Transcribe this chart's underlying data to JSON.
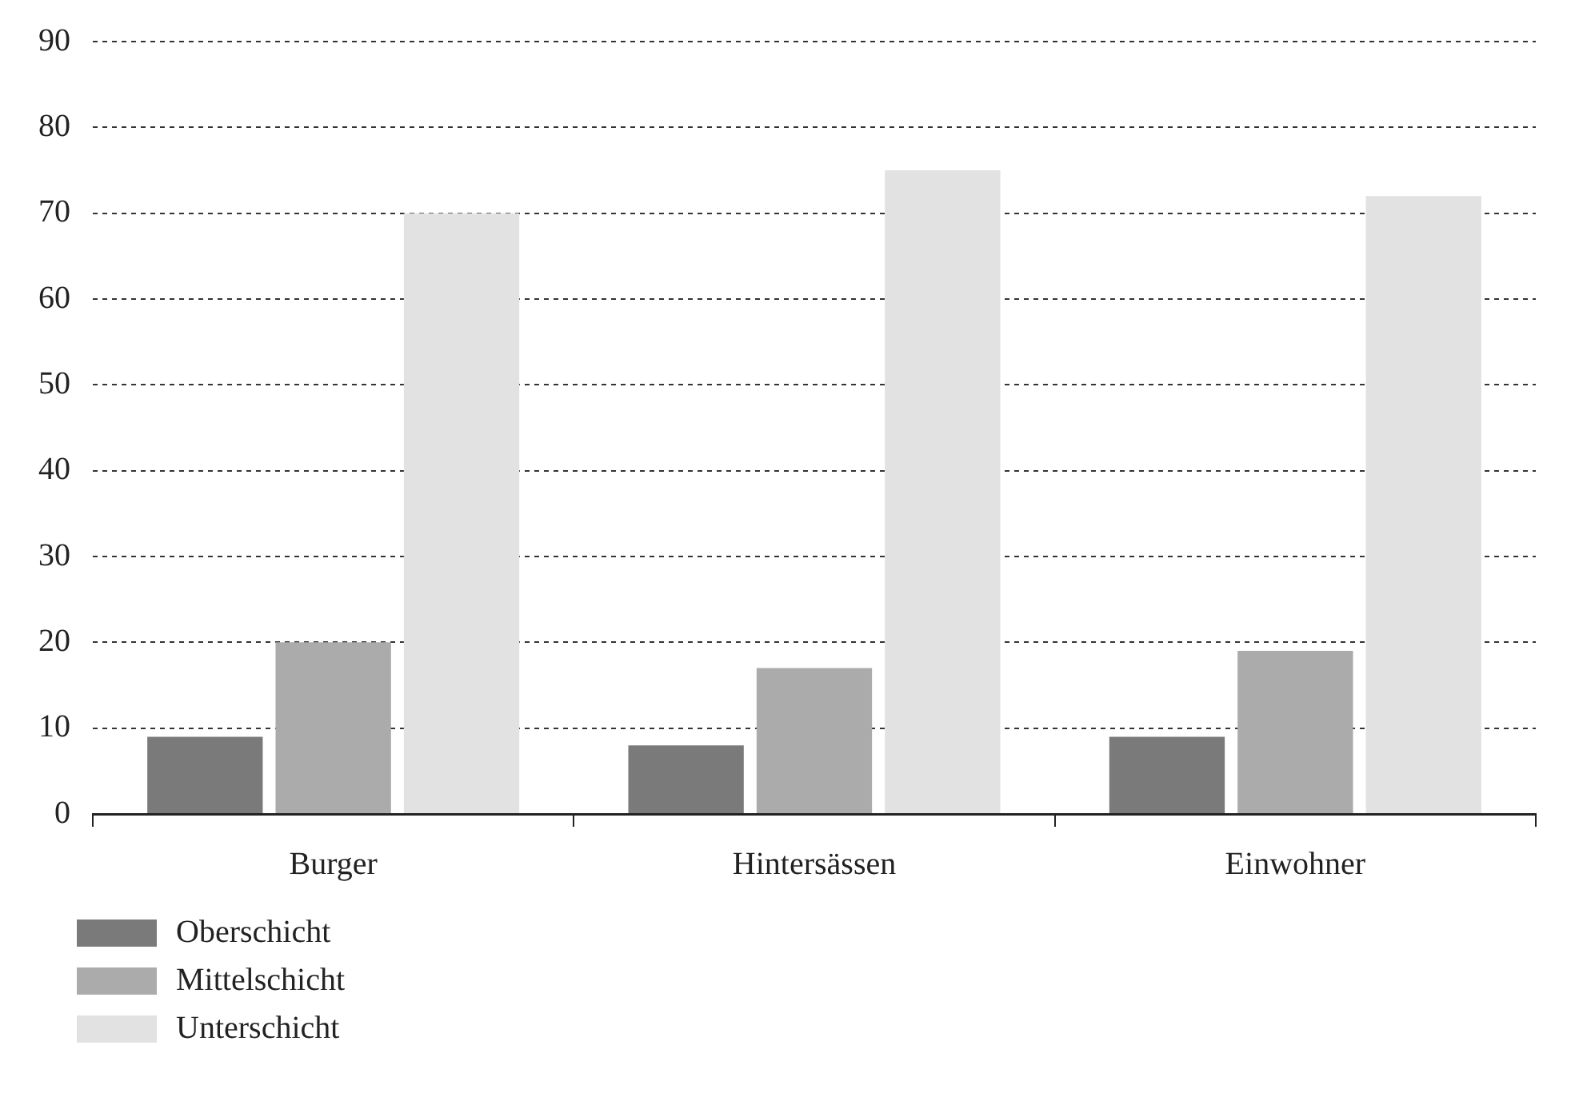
{
  "chart_data": {
    "type": "bar",
    "categories": [
      "Burger",
      "Hintersässen",
      "Einwohner"
    ],
    "series": [
      {
        "name": "Oberschicht",
        "color": "#7a7a7a",
        "values": [
          9,
          8,
          9
        ]
      },
      {
        "name": "Mittelschicht",
        "color": "#ababab",
        "values": [
          20,
          17,
          19
        ]
      },
      {
        "name": "Unterschicht",
        "color": "#e2e2e2",
        "values": [
          70,
          75,
          72
        ]
      }
    ],
    "ylim": [
      0,
      90
    ],
    "yticks": [
      0,
      10,
      20,
      30,
      40,
      50,
      60,
      70,
      80,
      90
    ],
    "grid": "y",
    "legend": "bottom left"
  }
}
